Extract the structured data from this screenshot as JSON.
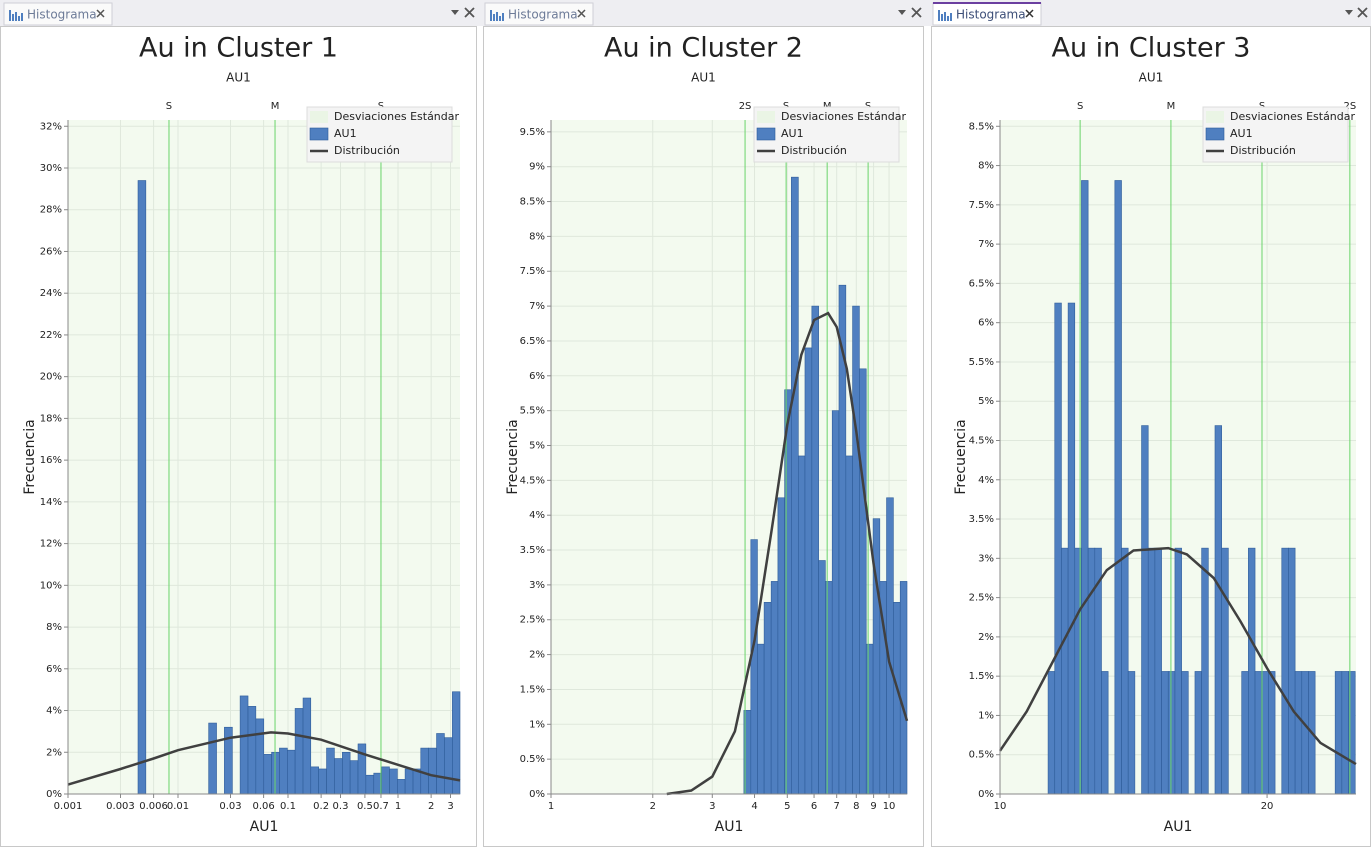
{
  "tabs": [
    "Histograma",
    "Histograma",
    "Histograma"
  ],
  "chart_data": [
    {
      "type": "histogram",
      "title": "Au in Cluster 1",
      "subtitle": "AU1",
      "x_label": "AU1",
      "y_label": "Frecuencia",
      "x_log": true,
      "grid": true,
      "legend": "upper right",
      "bins": [
        0.00433,
        0.0051,
        0.00602,
        0.00709,
        0.00836,
        0.00986,
        0.0116,
        0.0137,
        0.0161,
        0.019,
        0.0224,
        0.0264,
        0.0312,
        0.0367,
        0.0433,
        0.051,
        0.0602,
        0.0709,
        0.0836,
        0.0986,
        0.116,
        0.137,
        0.161,
        0.19,
        0.224,
        0.264,
        0.312,
        0.367,
        0.433,
        0.51,
        0.602,
        0.709,
        0.836,
        0.986,
        1.16,
        1.37,
        1.61,
        1.9,
        2.24,
        2.64,
        3.12,
        3.66
      ],
      "series": [
        {
          "name": "AU1",
          "color": "#4f7fc0",
          "values": [
            29.4,
            0,
            0,
            0,
            0,
            0,
            0,
            0,
            0,
            3.4,
            0,
            3.2,
            0,
            4.7,
            4.2,
            3.6,
            1.9,
            2.0,
            2.2,
            2.1,
            4.1,
            4.6,
            1.3,
            1.2,
            2.2,
            1.7,
            2.0,
            1.6,
            2.4,
            0.9,
            1.0,
            1.3,
            1.2,
            0.7,
            1.2,
            1.2,
            2.2,
            2.2,
            2.9,
            2.7,
            4.9
          ]
        }
      ],
      "distribution": {
        "name": "Distribución",
        "color": "#404040",
        "x": [
          0.001,
          0.003,
          0.006,
          0.01,
          0.03,
          0.07,
          0.1,
          0.2,
          0.5,
          1,
          2,
          3.66
        ],
        "values": [
          0.45,
          1.2,
          1.7,
          2.1,
          2.7,
          2.95,
          2.9,
          2.6,
          1.9,
          1.4,
          0.9,
          0.65
        ]
      },
      "std_lines": {
        "name": "Desviaciones Estándar",
        "color": "#6ad46a",
        "lines": [
          {
            "label": "S",
            "value": 0.00828
          },
          {
            "label": "M",
            "value": 0.0762
          },
          {
            "label": "S",
            "value": 0.7
          }
        ]
      },
      "xlim": [
        0.001,
        3.66
      ],
      "ylim": [
        0,
        32.3
      ],
      "xticks": [
        0.001,
        0.003,
        0.006,
        0.01,
        0.03,
        0.06,
        0.1,
        0.2,
        0.3,
        0.5,
        0.7,
        1,
        2,
        3
      ],
      "yticks": [
        {
          "value": 0,
          "label": "0%"
        },
        {
          "value": 2,
          "label": "2%"
        },
        {
          "value": 4,
          "label": "4%"
        },
        {
          "value": 6,
          "label": "6%"
        },
        {
          "value": 8,
          "label": "8%"
        },
        {
          "value": 10,
          "label": "10%"
        },
        {
          "value": 12,
          "label": "12%"
        },
        {
          "value": 14,
          "label": "14%"
        },
        {
          "value": 16,
          "label": "16%"
        },
        {
          "value": 18,
          "label": "18%"
        },
        {
          "value": 20,
          "label": "20%"
        },
        {
          "value": 22,
          "label": "22%"
        },
        {
          "value": 24,
          "label": "24%"
        },
        {
          "value": 26,
          "label": "26%"
        },
        {
          "value": 28,
          "label": "28%"
        },
        {
          "value": 30,
          "label": "30%"
        },
        {
          "value": 32,
          "label": "32%"
        }
      ]
    },
    {
      "type": "histogram",
      "title": "Au in Cluster 2",
      "subtitle": "AU1",
      "x_label": "AU1",
      "y_label": "Frecuencia",
      "x_log": true,
      "grid": true,
      "legend": "upper right",
      "bins": [
        3.72,
        3.9,
        4.08,
        4.27,
        4.48,
        4.69,
        4.91,
        5.14,
        5.39,
        5.64,
        5.91,
        6.19,
        6.48,
        6.79,
        7.11,
        7.45,
        7.8,
        8.17,
        8.56,
        8.97,
        9.39,
        9.83,
        10.3,
        10.79,
        11.3
      ],
      "series": [
        {
          "name": "AU1",
          "color": "#4f7fc0",
          "values": [
            1.2,
            3.65,
            2.15,
            2.75,
            3.05,
            4.25,
            5.8,
            8.85,
            4.85,
            6.4,
            7.0,
            3.35,
            3.05,
            5.5,
            7.3,
            4.85,
            7.0,
            6.1,
            2.15,
            3.95,
            3.05,
            4.25,
            2.75,
            3.05
          ]
        }
      ],
      "distribution": {
        "name": "Distribución",
        "color": "#404040",
        "x": [
          2.2,
          2.6,
          3,
          3.5,
          4,
          4.5,
          5,
          5.5,
          6,
          6.6,
          7,
          7.5,
          8,
          9,
          10,
          11.3
        ],
        "values": [
          0,
          0.05,
          0.25,
          0.9,
          2.2,
          3.8,
          5.3,
          6.3,
          6.8,
          6.9,
          6.7,
          6.1,
          5.2,
          3.3,
          1.9,
          1.05
        ]
      },
      "std_lines": {
        "name": "Desviaciones Estándar",
        "color": "#6ad46a",
        "lines": [
          {
            "label": "2S",
            "value": 3.75
          },
          {
            "label": "S",
            "value": 4.96
          },
          {
            "label": "M",
            "value": 6.56
          },
          {
            "label": "S",
            "value": 8.67
          }
        ]
      },
      "xlim": [
        1,
        11.3
      ],
      "ylim": [
        0,
        9.67
      ],
      "xticks": [
        1,
        2,
        3,
        4,
        5,
        6,
        7,
        8,
        9,
        10
      ],
      "yticks": [
        {
          "value": 0,
          "label": "0%"
        },
        {
          "value": 0.5,
          "label": "0.5%"
        },
        {
          "value": 1,
          "label": "1%"
        },
        {
          "value": 1.5,
          "label": "1.5%"
        },
        {
          "value": 2,
          "label": "2%"
        },
        {
          "value": 2.5,
          "label": "2.5%"
        },
        {
          "value": 3,
          "label": "3%"
        },
        {
          "value": 3.5,
          "label": "3.5%"
        },
        {
          "value": 4,
          "label": "4%"
        },
        {
          "value": 4.5,
          "label": "4.5%"
        },
        {
          "value": 5,
          "label": "5%"
        },
        {
          "value": 5.5,
          "label": "5.5%"
        },
        {
          "value": 6,
          "label": "6%"
        },
        {
          "value": 6.5,
          "label": "6.5%"
        },
        {
          "value": 7,
          "label": "7%"
        },
        {
          "value": 7.5,
          "label": "7.5%"
        },
        {
          "value": 8,
          "label": "8%"
        },
        {
          "value": 8.5,
          "label": "8.5%"
        },
        {
          "value": 9,
          "label": "9%"
        },
        {
          "value": 9.5,
          "label": "9.5%"
        }
      ]
    },
    {
      "type": "histogram",
      "title": "Au in Cluster 3",
      "subtitle": "AU1",
      "x_label": "AU1",
      "y_label": "Frecuencia",
      "x_log": false,
      "grid": true,
      "legend": "upper right",
      "bins": [
        11.8,
        12.05,
        12.3,
        12.55,
        12.8,
        13.05,
        13.3,
        13.55,
        13.8,
        14.05,
        14.3,
        14.55,
        14.8,
        15.05,
        15.3,
        15.55,
        15.8,
        16.05,
        16.3,
        16.55,
        16.8,
        17.05,
        17.3,
        17.55,
        17.8,
        18.05,
        18.3,
        18.55,
        18.8,
        19.05,
        19.3,
        19.55,
        19.8,
        20.05,
        20.3,
        20.55,
        20.8,
        21.05,
        21.3,
        21.55,
        21.8,
        22.05,
        22.3,
        22.55,
        22.8,
        23.05,
        23.3
      ],
      "series": [
        {
          "name": "AU1",
          "color": "#4f7fc0",
          "values": [
            1.56,
            6.25,
            3.13,
            6.25,
            3.13,
            7.81,
            3.13,
            3.13,
            1.56,
            0,
            7.81,
            3.13,
            1.56,
            0,
            4.69,
            3.13,
            3.13,
            1.56,
            1.56,
            3.13,
            1.56,
            0,
            1.56,
            3.13,
            0,
            4.69,
            3.13,
            0,
            0,
            1.56,
            3.13,
            1.56,
            1.56,
            1.56,
            0,
            3.13,
            3.13,
            1.56,
            1.56,
            1.56,
            0,
            0,
            0,
            1.56,
            1.56,
            1.56
          ]
        }
      ],
      "distribution": {
        "name": "Distribución",
        "color": "#404040",
        "x": [
          10,
          11,
          12,
          13,
          14,
          15,
          16.3,
          17,
          18,
          19,
          20,
          21,
          22,
          23.33
        ],
        "values": [
          0.55,
          1.05,
          1.7,
          2.35,
          2.85,
          3.1,
          3.13,
          3.05,
          2.75,
          2.2,
          1.6,
          1.05,
          0.65,
          0.38
        ]
      },
      "std_lines": {
        "name": "Desviaciones Estándar",
        "color": "#6ad46a",
        "lines": [
          {
            "label": "S",
            "value": 13.0
          },
          {
            "label": "M",
            "value": 16.4
          },
          {
            "label": "S",
            "value": 19.81
          },
          {
            "label": "2S",
            "value": 23.1
          }
        ]
      },
      "xlim": [
        10,
        23.33
      ],
      "ylim": [
        0,
        8.58
      ],
      "xticks": [
        10,
        20
      ],
      "yticks": [
        {
          "value": 0,
          "label": "0%"
        },
        {
          "value": 0.5,
          "label": "0.5%"
        },
        {
          "value": 1,
          "label": "1%"
        },
        {
          "value": 1.5,
          "label": "1.5%"
        },
        {
          "value": 2,
          "label": "2%"
        },
        {
          "value": 2.5,
          "label": "2.5%"
        },
        {
          "value": 3,
          "label": "3%"
        },
        {
          "value": 3.5,
          "label": "3.5%"
        },
        {
          "value": 4,
          "label": "4%"
        },
        {
          "value": 4.5,
          "label": "4.5%"
        },
        {
          "value": 5,
          "label": "5%"
        },
        {
          "value": 5.5,
          "label": "5.5%"
        },
        {
          "value": 6,
          "label": "6%"
        },
        {
          "value": 6.5,
          "label": "6.5%"
        },
        {
          "value": 7,
          "label": "7%"
        },
        {
          "value": 7.5,
          "label": "7.5%"
        },
        {
          "value": 8,
          "label": "8%"
        },
        {
          "value": 8.5,
          "label": "8.5%"
        }
      ]
    }
  ]
}
